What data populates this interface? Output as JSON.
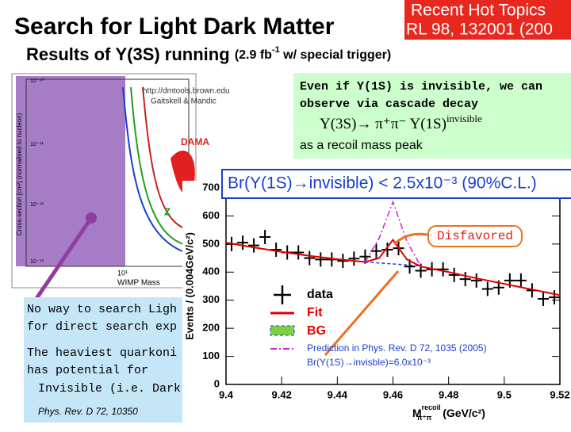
{
  "header": {
    "title": "Search for Light Dark Matter",
    "badge": [
      "Recent Hot Topics",
      "RL 98, 132001 (200"
    ],
    "subtitle": "Results of Υ(3S) running",
    "subtitle_note": "(2.9 fb",
    "subtitle_note_sup": "-1",
    "subtitle_note_end": " w/ special trigger)"
  },
  "limit_plot": {
    "credit": [
      "http://dmtools.brown.edu",
      "Gaitskell & Mandic"
    ],
    "labels": [
      "DAMA",
      "Z"
    ],
    "x_label": "WIMP Mass",
    "x_tick": "10¹",
    "y_label": "Cross-section [cm²] (normalised to nucleon)",
    "y_ticks": [
      "10⁻⁴⁰",
      "10⁻⁴¹",
      "10⁻⁴²",
      "10⁻⁴³"
    ]
  },
  "cascade_box": {
    "lines": [
      "Even if Υ(1S) is invisible, we can",
      "observe via cascade decay"
    ],
    "decay": "Υ(3S)→ π⁺π⁻ Υ(1S)",
    "decay_sup": "invisible",
    "last": "as a recoil mass peak"
  },
  "result": "Br(Y(1S)→invisible) < 2.5x10⁻³ (90%C.L.)",
  "note_box": {
    "lines": [
      "No way to search Ligh",
      "for direct search exp",
      "The heaviest quarkoni",
      "has potential for",
      "Invisible (i.e. Dark M"
    ],
    "reference": "Phys. Rev. D 72, 10350"
  },
  "chart_data": {
    "type": "scatter",
    "y_label": "Events / (0.004GeV/c²)",
    "x_label": "M",
    "x_label_sup": "recoil",
    "x_label_sub": "π⁺π",
    "x_label_unit": "(GeV/c²)",
    "annotation": "Disfavored",
    "xlim": [
      9.4,
      9.52
    ],
    "ylim": [
      0,
      700
    ],
    "xticks": [
      9.4,
      9.42,
      9.44,
      9.46,
      9.48,
      9.5,
      9.52
    ],
    "yticks": [
      0,
      100,
      200,
      300,
      400,
      500,
      600,
      700
    ],
    "series": [
      {
        "name": "data",
        "color": "#000000",
        "x": [
          9.402,
          9.406,
          9.41,
          9.414,
          9.418,
          9.422,
          9.426,
          9.43,
          9.434,
          9.438,
          9.442,
          9.446,
          9.45,
          9.454,
          9.458,
          9.462,
          9.466,
          9.47,
          9.474,
          9.478,
          9.482,
          9.486,
          9.49,
          9.494,
          9.498,
          9.502,
          9.506,
          9.51,
          9.514,
          9.518
        ],
        "values": [
          500,
          505,
          495,
          525,
          480,
          470,
          470,
          450,
          445,
          445,
          440,
          448,
          455,
          475,
          480,
          485,
          420,
          405,
          410,
          410,
          390,
          375,
          370,
          340,
          345,
          370,
          370,
          335,
          305,
          310
        ]
      },
      {
        "name": "Fit",
        "color": "#e00000",
        "x": [
          9.4,
          9.41,
          9.42,
          9.43,
          9.44,
          9.45,
          9.455,
          9.46,
          9.465,
          9.47,
          9.48,
          9.49,
          9.5,
          9.51,
          9.52
        ],
        "values": [
          505,
          488,
          472,
          458,
          446,
          436,
          450,
          515,
          445,
          420,
          400,
          378,
          358,
          338,
          318
        ]
      },
      {
        "name": "BG",
        "color": "#1a3fd0",
        "x": [
          9.45,
          9.47
        ],
        "values": [
          436,
          422
        ]
      },
      {
        "name": "Prediction in Phys. Rev. D 72, 1035 (2005)",
        "color": "#d020d0",
        "x": [
          9.45,
          9.455,
          9.46,
          9.465,
          9.47
        ],
        "values": [
          436,
          520,
          650,
          510,
          420
        ]
      }
    ],
    "legend_extra": "Br(Y(1S)→invisble)=6.0x10⁻³"
  }
}
